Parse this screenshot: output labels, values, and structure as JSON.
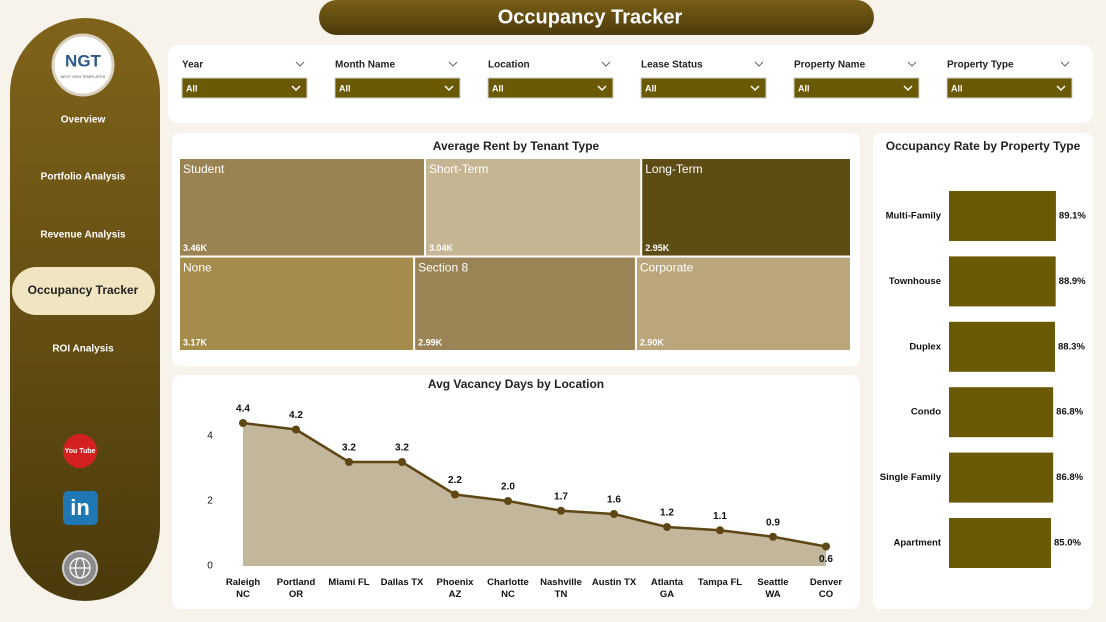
{
  "header": {
    "title": "Occupancy Tracker"
  },
  "sidebar": {
    "logo": "NGT",
    "logo_caption": "NEXT GEN TEMPLATES",
    "nav": [
      "Overview",
      "Portfolio Analysis",
      "Revenue Analysis",
      "Occupancy Tracker",
      "ROI Analysis"
    ],
    "active": 3,
    "youtube_label": "You Tube",
    "linkedin_label": "in"
  },
  "filters": [
    {
      "label": "Year",
      "value": "All"
    },
    {
      "label": "Month Name",
      "value": "All"
    },
    {
      "label": "Location",
      "value": "All"
    },
    {
      "label": "Lease Status",
      "value": "All"
    },
    {
      "label": "Property Name",
      "value": "All"
    },
    {
      "label": "Property Type",
      "value": "All"
    }
  ],
  "chart_data": [
    {
      "type": "treemap",
      "title": "Average Rent by Tenant Type",
      "categories": [
        "Student",
        "Short-Term",
        "Long-Term",
        "None",
        "Section 8",
        "Corporate"
      ],
      "values": [
        3460,
        3040,
        2950,
        3170,
        2990,
        2900
      ],
      "value_labels": [
        "3.46K",
        "3.04K",
        "2.95K",
        "3.17K",
        "2.99K",
        "2.90K"
      ],
      "colors": [
        "#9a8352",
        "#c5b593",
        "#5e4c15",
        "#a58c4c",
        "#9a8354",
        "#baa67a"
      ]
    },
    {
      "type": "area",
      "title": "Avg Vacancy Days by Location",
      "categories": [
        "Raleigh\nNC",
        "Portland\nOR",
        "Miami FL",
        "Dallas TX",
        "Phoenix\nAZ",
        "Charlotte\nNC",
        "Nashville\nTN",
        "Austin TX",
        "Atlanta\nGA",
        "Tampa FL",
        "Seattle\nWA",
        "Denver\nCO"
      ],
      "values": [
        4.4,
        4.2,
        3.2,
        3.2,
        2.2,
        2.0,
        1.7,
        1.6,
        1.2,
        1.1,
        0.9,
        0.6
      ],
      "value_labels": [
        "4.4",
        "4.2",
        "3.2",
        "3.2",
        "2.2",
        "2.0",
        "1.7",
        "1.6",
        "1.2",
        "1.1",
        "0.9",
        "0.6"
      ],
      "ylim": [
        0,
        5
      ],
      "yticks": [
        0,
        2,
        4
      ],
      "color": "#5e4714",
      "fill": "#c2b69b",
      "grid": false
    },
    {
      "type": "bar",
      "orientation": "horizontal",
      "title": "Occupancy Rate by Property Type",
      "categories": [
        "Multi-Family",
        "Townhouse",
        "Duplex",
        "Condo",
        "Single Family",
        "Apartment"
      ],
      "values": [
        89.1,
        88.9,
        88.3,
        86.8,
        86.8,
        85.0
      ],
      "value_labels": [
        "89.1%",
        "88.9%",
        "88.3%",
        "86.8%",
        "86.8%",
        "85.0%"
      ],
      "color": "#6b5a05"
    }
  ]
}
